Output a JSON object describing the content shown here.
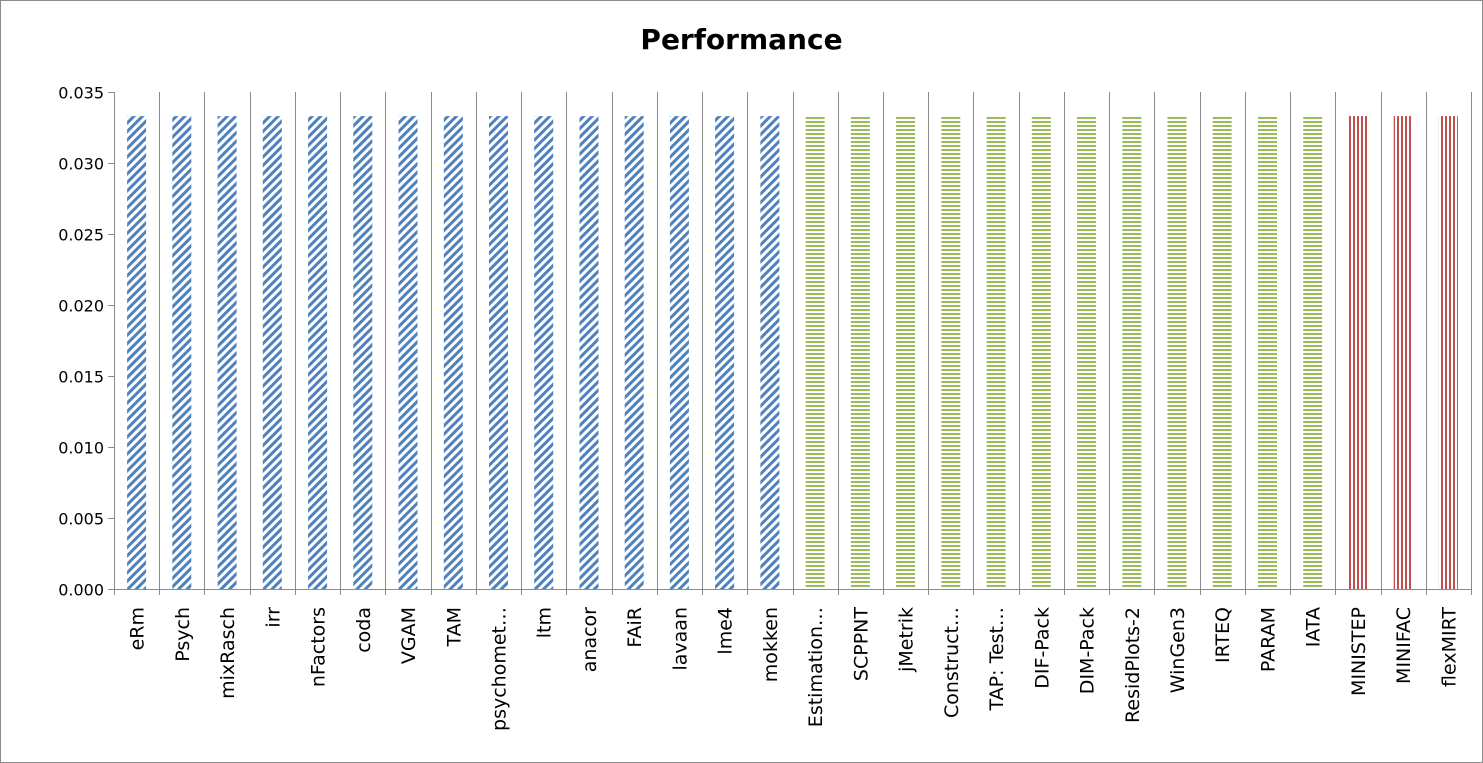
{
  "chart_data": {
    "type": "bar",
    "title": "Performance",
    "xlabel": "",
    "ylabel": "",
    "ylim": [
      0,
      0.035
    ],
    "yticks": [
      "0.000",
      "0.005",
      "0.010",
      "0.015",
      "0.020",
      "0.025",
      "0.030",
      "0.035"
    ],
    "ytick_values": [
      0,
      0.005,
      0.01,
      0.015,
      0.02,
      0.025,
      0.03,
      0.035
    ],
    "grid": "vertical category separators",
    "legend": "none",
    "categories": [
      "eRm",
      "Psych",
      "mixRasch",
      "irr",
      "nFactors",
      "coda",
      "VGAM",
      "TAM",
      "psychomet…",
      "ltm",
      "anacor",
      "FAiR",
      "lavaan",
      "lme4",
      "mokken",
      "Estimation…",
      "SCPPNT",
      "jMetrik",
      "Construct…",
      "TAP: Test…",
      "DIF-Pack",
      "DIM-Pack",
      "ResidPlots-2",
      "WinGen3",
      "IRTEQ",
      "PARAM",
      "IATA",
      "MINISTEP",
      "MINIFAC",
      "flexMIRT"
    ],
    "values": [
      0.0333,
      0.0333,
      0.0333,
      0.0333,
      0.0333,
      0.0333,
      0.0333,
      0.0333,
      0.0333,
      0.0333,
      0.0333,
      0.0333,
      0.0333,
      0.0333,
      0.0333,
      0.0333,
      0.0333,
      0.0333,
      0.0333,
      0.0333,
      0.0333,
      0.0333,
      0.0333,
      0.0333,
      0.0333,
      0.0333,
      0.0333,
      0.0333,
      0.0333,
      0.0333
    ],
    "groups": [
      {
        "pattern": "diagonal",
        "color": "#4f81bd",
        "count": 15
      },
      {
        "pattern": "horizontal",
        "color": "#9bbb59",
        "count": 12
      },
      {
        "pattern": "vertical",
        "color": "#c0504d",
        "count": 3
      }
    ]
  }
}
